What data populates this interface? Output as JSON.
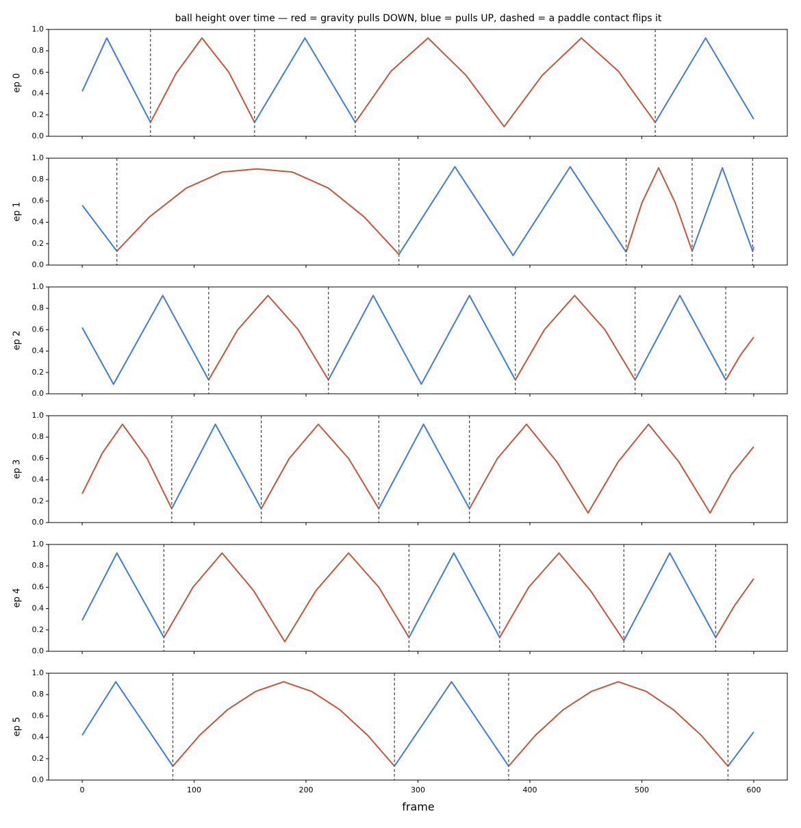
{
  "chart_data": [
    {
      "type": "line",
      "title": "ball height over time — red = gravity pulls DOWN, blue = pulls UP, dashed = a paddle contact flips it",
      "ylabel": "ep 0",
      "xlim": [
        -30,
        630
      ],
      "ylim": [
        0,
        1
      ],
      "yticks": [
        {
          "value": 0,
          "label": "0.0"
        },
        0.2,
        0.4,
        0.6,
        0.8,
        {
          "value": 1,
          "label": "1.0"
        }
      ],
      "contacts": [
        61,
        154,
        244,
        512
      ],
      "segments": [
        {
          "color": "#3b7dd8",
          "x": [
            0,
            22,
            61
          ],
          "values": [
            0.42,
            0.92,
            0.13
          ]
        },
        {
          "color": "#c4553a",
          "x": [
            61,
            84,
            107,
            131,
            154
          ],
          "values": [
            0.13,
            0.59,
            0.92,
            0.6,
            0.13
          ]
        },
        {
          "color": "#3b7dd8",
          "x": [
            154,
            199,
            244
          ],
          "values": [
            0.13,
            0.92,
            0.13
          ]
        },
        {
          "color": "#c4553a",
          "x": [
            244,
            276,
            309,
            343,
            377,
            411,
            446,
            479,
            512
          ],
          "values": [
            0.13,
            0.61,
            0.92,
            0.57,
            0.09,
            0.57,
            0.92,
            0.61,
            0.13
          ]
        },
        {
          "color": "#3b7dd8",
          "x": [
            512,
            557,
            600
          ],
          "values": [
            0.13,
            0.92,
            0.16
          ]
        }
      ]
    },
    {
      "type": "line",
      "ylabel": "ep 1",
      "xlim": [
        -30,
        630
      ],
      "ylim": [
        0,
        1
      ],
      "yticks": [
        {
          "value": 0,
          "label": "0.0"
        },
        0.2,
        0.4,
        0.6,
        0.8,
        {
          "value": 1,
          "label": "1.0"
        }
      ],
      "contacts": [
        31,
        283,
        486,
        545,
        599
      ],
      "segments": [
        {
          "color": "#3b7dd8",
          "x": [
            0,
            31
          ],
          "values": [
            0.56,
            0.13
          ]
        },
        {
          "color": "#c4553a",
          "x": [
            31,
            60,
            93,
            125,
            156,
            188,
            220,
            252,
            283
          ],
          "values": [
            0.13,
            0.45,
            0.72,
            0.87,
            0.9,
            0.87,
            0.72,
            0.45,
            0.1
          ]
        },
        {
          "color": "#3b7dd8",
          "x": [
            283,
            333,
            385,
            436,
            486
          ],
          "values": [
            0.1,
            0.92,
            0.09,
            0.92,
            0.12
          ]
        },
        {
          "color": "#c4553a",
          "x": [
            486,
            500,
            515,
            530,
            545
          ],
          "values": [
            0.12,
            0.58,
            0.91,
            0.58,
            0.13
          ]
        },
        {
          "color": "#3b7dd8",
          "x": [
            545,
            572,
            599
          ],
          "values": [
            0.13,
            0.91,
            0.13
          ]
        },
        {
          "color": "#c4553a",
          "x": [
            599,
            600
          ],
          "values": [
            0.13,
            0.17
          ]
        }
      ]
    },
    {
      "type": "line",
      "ylabel": "ep 2",
      "xlim": [
        -30,
        630
      ],
      "ylim": [
        0,
        1
      ],
      "yticks": [
        {
          "value": 0,
          "label": "0.0"
        },
        0.2,
        0.4,
        0.6,
        0.8,
        {
          "value": 1,
          "label": "1.0"
        }
      ],
      "contacts": [
        113,
        220,
        387,
        494,
        575
      ],
      "segments": [
        {
          "color": "#3b7dd8",
          "x": [
            0,
            28,
            72,
            113
          ],
          "values": [
            0.62,
            0.09,
            0.92,
            0.13
          ]
        },
        {
          "color": "#c4553a",
          "x": [
            113,
            139,
            166,
            193,
            220
          ],
          "values": [
            0.13,
            0.6,
            0.92,
            0.6,
            0.13
          ]
        },
        {
          "color": "#3b7dd8",
          "x": [
            220,
            260,
            303,
            346,
            387
          ],
          "values": [
            0.13,
            0.92,
            0.09,
            0.92,
            0.13
          ]
        },
        {
          "color": "#c4553a",
          "x": [
            387,
            413,
            440,
            467,
            494
          ],
          "values": [
            0.13,
            0.6,
            0.92,
            0.6,
            0.13
          ]
        },
        {
          "color": "#3b7dd8",
          "x": [
            494,
            534,
            575
          ],
          "values": [
            0.13,
            0.92,
            0.13
          ]
        },
        {
          "color": "#c4553a",
          "x": [
            575,
            588,
            600
          ],
          "values": [
            0.13,
            0.36,
            0.53
          ]
        }
      ]
    },
    {
      "type": "line",
      "ylabel": "ep 3",
      "xlim": [
        -30,
        630
      ],
      "ylim": [
        0,
        1
      ],
      "yticks": [
        {
          "value": 0,
          "label": "0.0"
        },
        0.2,
        0.4,
        0.6,
        0.8,
        {
          "value": 1,
          "label": "1.0"
        }
      ],
      "contacts": [
        80,
        160,
        265,
        346
      ],
      "segments": [
        {
          "color": "#c4553a",
          "x": [
            0,
            18,
            36,
            58,
            80
          ],
          "values": [
            0.27,
            0.65,
            0.92,
            0.6,
            0.13
          ]
        },
        {
          "color": "#3b7dd8",
          "x": [
            80,
            119,
            160
          ],
          "values": [
            0.13,
            0.92,
            0.13
          ]
        },
        {
          "color": "#c4553a",
          "x": [
            160,
            185,
            211,
            238,
            265
          ],
          "values": [
            0.13,
            0.6,
            0.92,
            0.6,
            0.13
          ]
        },
        {
          "color": "#3b7dd8",
          "x": [
            265,
            305,
            346
          ],
          "values": [
            0.13,
            0.92,
            0.13
          ]
        },
        {
          "color": "#c4553a",
          "x": [
            346,
            371,
            397,
            424,
            452,
            479,
            506,
            533,
            561,
            580,
            600
          ],
          "values": [
            0.13,
            0.6,
            0.92,
            0.57,
            0.09,
            0.57,
            0.92,
            0.57,
            0.09,
            0.45,
            0.71
          ]
        }
      ]
    },
    {
      "type": "line",
      "ylabel": "ep 4",
      "xlim": [
        -30,
        630
      ],
      "ylim": [
        0,
        1
      ],
      "yticks": [
        {
          "value": 0,
          "label": "0.0"
        },
        0.2,
        0.4,
        0.6,
        0.8,
        {
          "value": 1,
          "label": "1.0"
        }
      ],
      "contacts": [
        73,
        292,
        373,
        484,
        566
      ],
      "segments": [
        {
          "color": "#3b7dd8",
          "x": [
            0,
            31,
            73
          ],
          "values": [
            0.29,
            0.92,
            0.13
          ]
        },
        {
          "color": "#c4553a",
          "x": [
            73,
            99,
            125,
            153,
            181,
            209,
            238,
            265,
            292
          ],
          "values": [
            0.13,
            0.6,
            0.92,
            0.57,
            0.09,
            0.57,
            0.92,
            0.6,
            0.13
          ]
        },
        {
          "color": "#3b7dd8",
          "x": [
            292,
            332,
            373
          ],
          "values": [
            0.13,
            0.92,
            0.13
          ]
        },
        {
          "color": "#c4553a",
          "x": [
            373,
            399,
            426,
            454,
            484
          ],
          "values": [
            0.13,
            0.6,
            0.92,
            0.57,
            0.1
          ]
        },
        {
          "color": "#3b7dd8",
          "x": [
            484,
            525,
            566
          ],
          "values": [
            0.1,
            0.92,
            0.13
          ]
        },
        {
          "color": "#c4553a",
          "x": [
            566,
            583,
            600
          ],
          "values": [
            0.13,
            0.43,
            0.68
          ]
        }
      ]
    },
    {
      "type": "line",
      "ylabel": "ep 5",
      "xlabel": "frame",
      "xlim": [
        -30,
        630
      ],
      "ylim": [
        0,
        1
      ],
      "xticks": [
        0,
        100,
        200,
        300,
        400,
        500,
        600
      ],
      "yticks": [
        {
          "value": 0,
          "label": "0.0"
        },
        0.2,
        0.4,
        0.6,
        0.8,
        {
          "value": 1,
          "label": "1.0"
        }
      ],
      "contacts": [
        81,
        279,
        381,
        577
      ],
      "segments": [
        {
          "color": "#3b7dd8",
          "x": [
            0,
            30,
            81
          ],
          "values": [
            0.42,
            0.92,
            0.13
          ]
        },
        {
          "color": "#c4553a",
          "x": [
            81,
            105,
            130,
            155,
            180,
            205,
            230,
            255,
            279
          ],
          "values": [
            0.13,
            0.42,
            0.66,
            0.83,
            0.92,
            0.83,
            0.66,
            0.42,
            0.13
          ]
        },
        {
          "color": "#3b7dd8",
          "x": [
            279,
            330,
            381
          ],
          "values": [
            0.13,
            0.92,
            0.13
          ]
        },
        {
          "color": "#c4553a",
          "x": [
            381,
            405,
            430,
            455,
            479,
            504,
            528,
            553,
            577
          ],
          "values": [
            0.13,
            0.42,
            0.66,
            0.83,
            0.92,
            0.83,
            0.66,
            0.42,
            0.13
          ]
        },
        {
          "color": "#3b7dd8",
          "x": [
            577,
            600
          ],
          "values": [
            0.13,
            0.45
          ]
        }
      ]
    }
  ]
}
